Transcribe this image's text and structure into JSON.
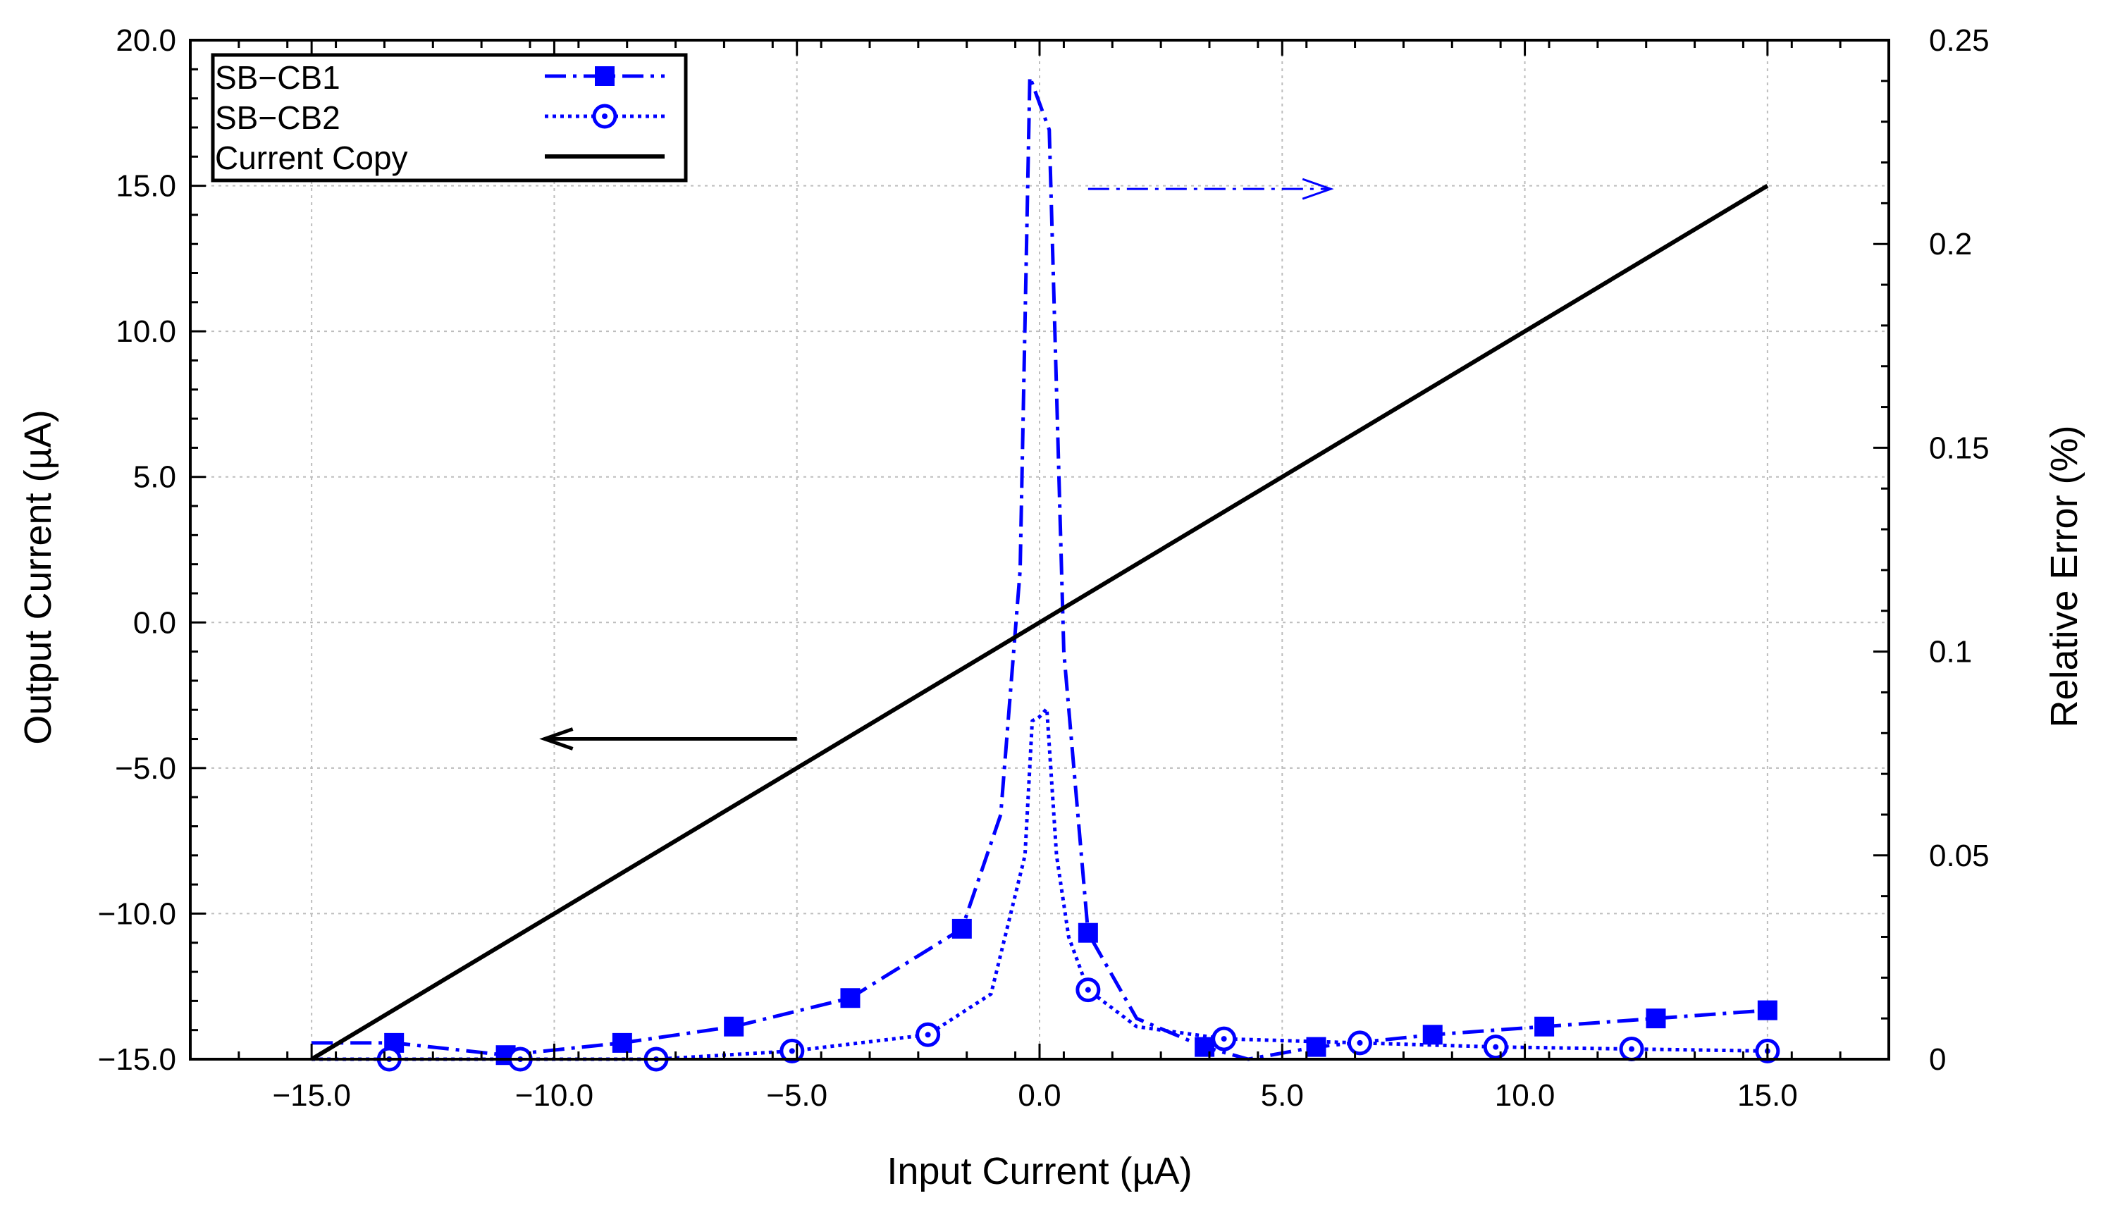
{
  "chart_data": {
    "type": "line",
    "title": "",
    "xlabel": "Input Current (µA)",
    "ylabel_left": "Output Current (µA)",
    "ylabel_right": "Relative Error (%)",
    "xlim": [
      -17.5,
      17.5
    ],
    "ylim_left": [
      -15,
      20
    ],
    "ylim_right": [
      0,
      0.25
    ],
    "x_ticks": [
      -15,
      -10,
      -5,
      0,
      5,
      10,
      15
    ],
    "x_tick_labels": [
      "−15.0",
      "−10.0",
      "−5.0",
      "0.0",
      "5.0",
      "10.0",
      "15.0"
    ],
    "y_left_ticks": [
      -15,
      -10,
      -5,
      0,
      5,
      10,
      15,
      20
    ],
    "y_left_tick_labels": [
      "−15.0",
      "−10.0",
      "−5.0",
      "0.0",
      "5.0",
      "10.0",
      "15.0",
      "20.0"
    ],
    "y_right_ticks": [
      0,
      0.05,
      0.1,
      0.15,
      0.2,
      0.25
    ],
    "y_right_tick_labels": [
      "0",
      "0.05",
      "0.1",
      "0.15",
      "0.2",
      "0.25"
    ],
    "grid": true,
    "legend_position": "top-left",
    "series": [
      {
        "name": "SB−CB1",
        "axis": "right",
        "color": "#0000ff",
        "line_style": "dash-dot",
        "marker": "filled-square",
        "x": [
          -15,
          -13.3,
          -11,
          -8.6,
          -6.3,
          -3.9,
          -1.6,
          -0.8,
          -0.4,
          -0.2,
          0.2,
          0.5,
          1,
          2,
          3.4,
          4.3,
          5.7,
          8.1,
          10.4,
          12.7,
          15
        ],
        "y": [
          0.004,
          0.004,
          0.001,
          0.004,
          0.008,
          0.015,
          0.032,
          0.06,
          0.12,
          0.241,
          0.228,
          0.1,
          0.031,
          0.01,
          0.003,
          0.0,
          0.003,
          0.006,
          0.008,
          0.01,
          0.012
        ],
        "marker_x": [
          -13.3,
          -11,
          -8.6,
          -6.3,
          -3.9,
          -1.6,
          1,
          3.4,
          5.7,
          8.1,
          10.4,
          12.7,
          15
        ],
        "marker_y": [
          0.004,
          0.001,
          0.004,
          0.008,
          0.015,
          0.032,
          0.031,
          0.003,
          0.003,
          0.006,
          0.008,
          0.01,
          0.012
        ]
      },
      {
        "name": "SB−CB2",
        "axis": "right",
        "color": "#0000ff",
        "line_style": "dotted",
        "marker": "open-circle-dot",
        "x": [
          -15,
          -13.4,
          -10.7,
          -7.9,
          -5.1,
          -2.3,
          -1,
          -0.3,
          -0.15,
          0,
          0.15,
          0.35,
          0.6,
          1,
          2,
          3.8,
          6.6,
          9.4,
          12.2,
          15
        ],
        "y": [
          0.0,
          0.0,
          0.0,
          0.0,
          0.002,
          0.006,
          0.016,
          0.05,
          0.083,
          0.084,
          0.086,
          0.05,
          0.03,
          0.017,
          0.008,
          0.005,
          0.004,
          0.003,
          0.0025,
          0.002
        ],
        "marker_x": [
          -13.4,
          -10.7,
          -7.9,
          -5.1,
          -2.3,
          1,
          3.8,
          6.6,
          9.4,
          12.2,
          15
        ],
        "marker_y": [
          0.0,
          0.0,
          0.0,
          0.002,
          0.006,
          0.017,
          0.005,
          0.004,
          0.003,
          0.0025,
          0.002
        ]
      },
      {
        "name": "Current Copy",
        "axis": "left",
        "color": "#000000",
        "line_style": "solid",
        "marker": "none",
        "x": [
          -15,
          15
        ],
        "y": [
          -15,
          15
        ]
      }
    ],
    "annotations": [
      {
        "type": "arrow",
        "direction": "left",
        "meaning": "Current Copy uses left axis",
        "axis": "left",
        "from": [
          -5,
          -4
        ],
        "to": [
          -10.2,
          -4
        ],
        "color": "#000000"
      },
      {
        "type": "arrow",
        "direction": "right",
        "meaning": "SB−CB1 / SB−CB2 use right axis",
        "axis": "right",
        "from": [
          1,
          0.2135
        ],
        "to": [
          6,
          0.2135
        ],
        "color": "#0000ff"
      }
    ]
  }
}
